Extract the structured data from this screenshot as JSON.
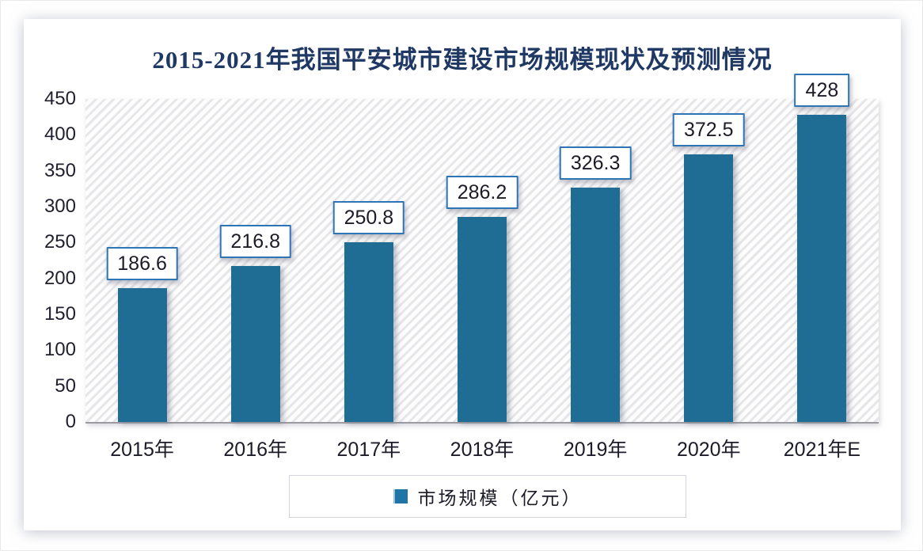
{
  "title": "2015-2021年我国平安城市建设市场规模现状及预测情况",
  "legend": {
    "label": "市场规模（亿元）"
  },
  "colors": {
    "bar": "#1f6c94",
    "title_text": "#1f3864",
    "value_box_border": "#2e75b6",
    "legend_marker": "#1f76a6",
    "axis_text": "#1f1f2e"
  },
  "chart_data": {
    "type": "bar",
    "title": "2015-2021年我国平安城市建设市场规模现状及预测情况",
    "categories": [
      "2015年",
      "2016年",
      "2017年",
      "2018年",
      "2019年",
      "2020年",
      "2021年E"
    ],
    "series": [
      {
        "name": "市场规模（亿元）",
        "values": [
          186.6,
          216.8,
          250.8,
          286.2,
          326.3,
          372.5,
          428
        ]
      }
    ],
    "xlabel": "",
    "ylabel": "",
    "ylim": [
      0,
      450
    ],
    "yticks": [
      0,
      50,
      100,
      150,
      200,
      250,
      300,
      350,
      400,
      450
    ],
    "grid": false,
    "plot_background": "diagonal-hatch",
    "legend_position": "bottom",
    "data_labels": "boxed-above-bars"
  }
}
